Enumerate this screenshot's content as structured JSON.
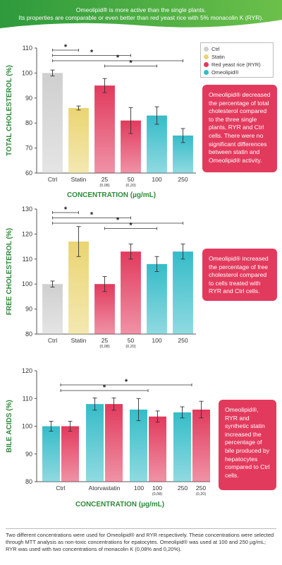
{
  "banner": {
    "line1": "Omeolipid® is more active than the single plants.",
    "line2": "Its properties are comparable or even better than red yeast rice with 5% monacolin K (RYR)."
  },
  "legend": {
    "items": [
      {
        "label": "Ctrl",
        "color": "#cfcfcf"
      },
      {
        "label": "Statin",
        "color": "#ead572"
      },
      {
        "label": "Red yeast rice (RYR)",
        "color": "#e23a5d"
      },
      {
        "label": "Omeolipid®",
        "color": "#35bcc8"
      }
    ]
  },
  "notes": {
    "n1": "Omeolipid® decreased the percentage of total cholesterol compared to the three single plants, RYR and Ctrl cells. There were no significant differences between statin and Omeolipid® activity.",
    "n2": "Omeolipid® increased the percentage of free cholesterol compared to cells treated with RYR and Ctrl cells.",
    "n3": "Omeolipid®, RYR and synthetic statin increased the percentage of bile produced by hepatocytes compared to Ctrl cells."
  },
  "footnote": "Two different concentrations were used for Omeolipid® and RYR respectively. These concentrations were selected through MTT analysis as non-toxic concentrations for epatocytes. Omeolipid® was used at 100 and 250 µg/mL; RYR was used with two concentrations of monacolin K (0,08% and 0,20%).",
  "colors": {
    "ctrl": "#cfcfcf",
    "statin": "#ead572",
    "ryr": "#e23a5d",
    "omeo": "#35bcc8",
    "axis_title": "#2f8a3a"
  },
  "chart_data": [
    {
      "type": "bar",
      "ylabel": "TOTAL CHOLESTEROL (%)",
      "xlabel": "CONCENTRATION (µg/mL)",
      "ylim": [
        60,
        110
      ],
      "yticks": [
        60,
        70,
        80,
        90,
        100,
        110
      ],
      "categories": [
        "Ctrl",
        "Statin",
        "25",
        "50",
        "100",
        "250"
      ],
      "sublabels": [
        "",
        "",
        "(0,08)",
        "(0,20)",
        "",
        ""
      ],
      "groups": [
        "ctrl",
        "statin",
        "ryr",
        "ryr",
        "omeo",
        "omeo"
      ],
      "values": [
        100,
        86,
        95,
        81,
        83,
        75
      ],
      "errors": [
        1.2,
        0.8,
        2.8,
        5.2,
        3.5,
        2.8
      ],
      "significance": [
        {
          "from": 0,
          "to": 1,
          "label": "*"
        },
        {
          "from": 0,
          "to": 3,
          "label": "*"
        },
        {
          "from": 0,
          "to": 5,
          "label": "*"
        },
        {
          "from": 2,
          "to": 4,
          "label": "*"
        }
      ]
    },
    {
      "type": "bar",
      "ylabel": "FREE CHOLESTEROL (%)",
      "xlabel": "CONCENTRATION (µg/mL)",
      "ylim": [
        80,
        130
      ],
      "yticks": [
        80,
        90,
        100,
        110,
        120,
        130
      ],
      "categories": [
        "Ctrl",
        "Statin",
        "25",
        "50",
        "100",
        "250"
      ],
      "sublabels": [
        "",
        "",
        "(0,08)",
        "(0,20)",
        "",
        ""
      ],
      "groups": [
        "ctrl",
        "statin",
        "ryr",
        "ryr",
        "omeo",
        "omeo"
      ],
      "values": [
        100,
        117,
        100,
        113,
        108,
        113
      ],
      "errors": [
        1.2,
        6,
        3,
        3,
        3,
        3
      ],
      "significance": [
        {
          "from": 0,
          "to": 1,
          "label": "*"
        },
        {
          "from": 0,
          "to": 3,
          "label": "*"
        },
        {
          "from": 0,
          "to": 5,
          "label": "*"
        },
        {
          "from": 2,
          "to": 4,
          "label": "*"
        }
      ]
    },
    {
      "type": "bar",
      "ylabel": "BILE ACIDS (%)",
      "xlabel": "CONCENTRATION (µg/mL)",
      "ylim": [
        80,
        120
      ],
      "yticks": [
        80,
        90,
        100,
        110,
        120
      ],
      "categories": [
        "Ctrl",
        "Atorvastatin",
        "100",
        "100",
        "250",
        "250"
      ],
      "sublabels": [
        "",
        "",
        "",
        "(0,08)",
        "",
        "(0,20)"
      ],
      "bars": [
        {
          "values": [
            100,
            100
          ],
          "errors": [
            1.8,
            1.8
          ]
        },
        {
          "values": [
            108,
            108
          ],
          "errors": [
            2.2,
            2.2
          ]
        },
        {
          "values": [
            106,
            103.5
          ],
          "errors": [
            4,
            2
          ]
        },
        {
          "values": [
            105,
            106
          ],
          "errors": [
            2,
            3
          ]
        }
      ],
      "pair_colors": [
        "omeo",
        "ryr"
      ],
      "significance": [
        {
          "from": 0,
          "to": 3,
          "label": "*"
        },
        {
          "from": 0,
          "to": 2,
          "label": "*"
        }
      ]
    }
  ]
}
